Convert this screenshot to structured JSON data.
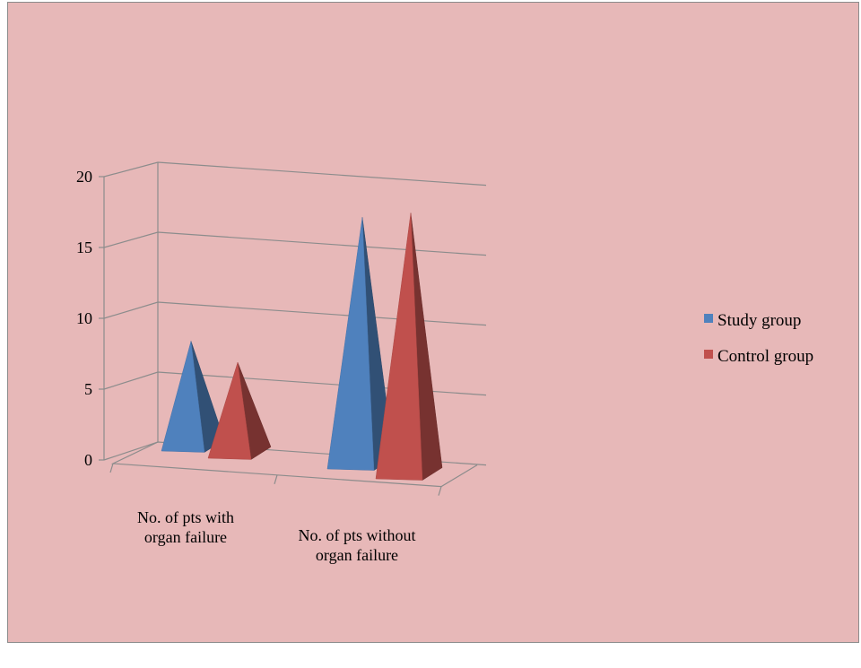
{
  "chart_data": {
    "type": "bar",
    "subtype": "3d-pyramid",
    "title": "",
    "xlabel": "",
    "ylabel": "",
    "ylim": [
      0,
      20
    ],
    "yticks": [
      "0",
      "5",
      "10",
      "15",
      "20"
    ],
    "grid": true,
    "legend_position": "right",
    "categories": [
      "No. of pts with organ failure",
      "No. of pts without organ failure"
    ],
    "series": [
      {
        "name": "Study group",
        "color": "#4f81bd",
        "values": [
          7,
          17
        ]
      },
      {
        "name": "Control group",
        "color": "#c0504d",
        "values": [
          6,
          18
        ]
      }
    ]
  },
  "colors": {
    "background": "#e7b8b8",
    "gridline": "#8c8c8c"
  }
}
